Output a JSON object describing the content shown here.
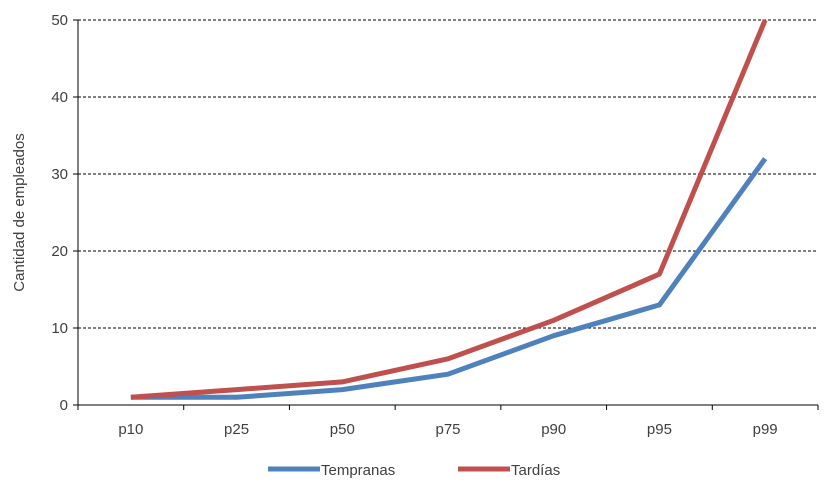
{
  "chart_data": {
    "type": "line",
    "title": "",
    "xlabel": "",
    "ylabel": "Cantidad de empleados",
    "categories": [
      "p10",
      "p25",
      "p50",
      "p75",
      "p90",
      "p95",
      "p99"
    ],
    "yticks": [
      "0",
      "10",
      "20",
      "30",
      "40",
      "50"
    ],
    "ylim": [
      0,
      50
    ],
    "grid": "horizontal dashed",
    "legend_position": "bottom",
    "series": [
      {
        "name": "Tempranas",
        "color": "#4f81bd",
        "values": [
          1,
          1,
          2,
          4,
          9,
          13,
          32
        ]
      },
      {
        "name": "Tardías",
        "color": "#c0504d",
        "values": [
          1,
          2,
          3,
          6,
          11,
          17,
          50
        ]
      }
    ]
  }
}
